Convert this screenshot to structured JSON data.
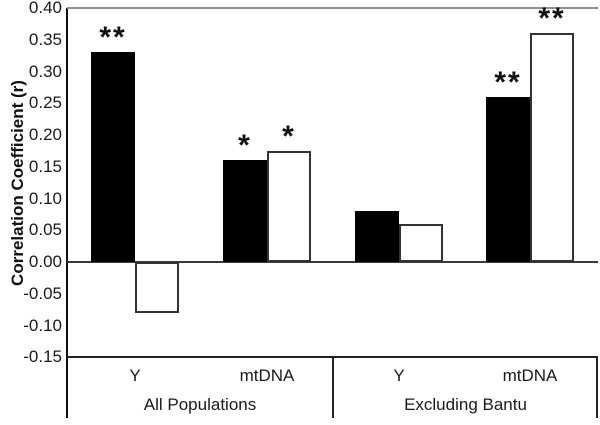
{
  "chart_data": {
    "type": "bar",
    "title": "",
    "ylabel": "Correlation Coefficient (r)",
    "ylim": [
      -0.15,
      0.4
    ],
    "ytick_step": 0.05,
    "yticks": [
      "0.40",
      "0.35",
      "0.30",
      "0.25",
      "0.20",
      "0.15",
      "0.10",
      "0.05",
      "0.00",
      "-0.05",
      "-0.10",
      "-0.15"
    ],
    "grid": "off",
    "legend": "none",
    "categories": [
      "Y",
      "mtDNA",
      "Y",
      "mtDNA"
    ],
    "group_labels": [
      {
        "label": "All Populations",
        "spans_categories": [
          0,
          1
        ]
      },
      {
        "label": "Excluding Bantu",
        "spans_categories": [
          2,
          3
        ]
      }
    ],
    "series": [
      {
        "name": "filled-black-bars",
        "fill": "#000000",
        "values": [
          0.33,
          0.16,
          0.08,
          0.26
        ],
        "significance": [
          "**",
          "*",
          "",
          "**"
        ]
      },
      {
        "name": "open-white-bars",
        "fill": "#ffffff",
        "values": [
          -0.08,
          0.175,
          0.06,
          0.36
        ],
        "significance": [
          "",
          "*",
          "",
          "**"
        ]
      }
    ]
  }
}
